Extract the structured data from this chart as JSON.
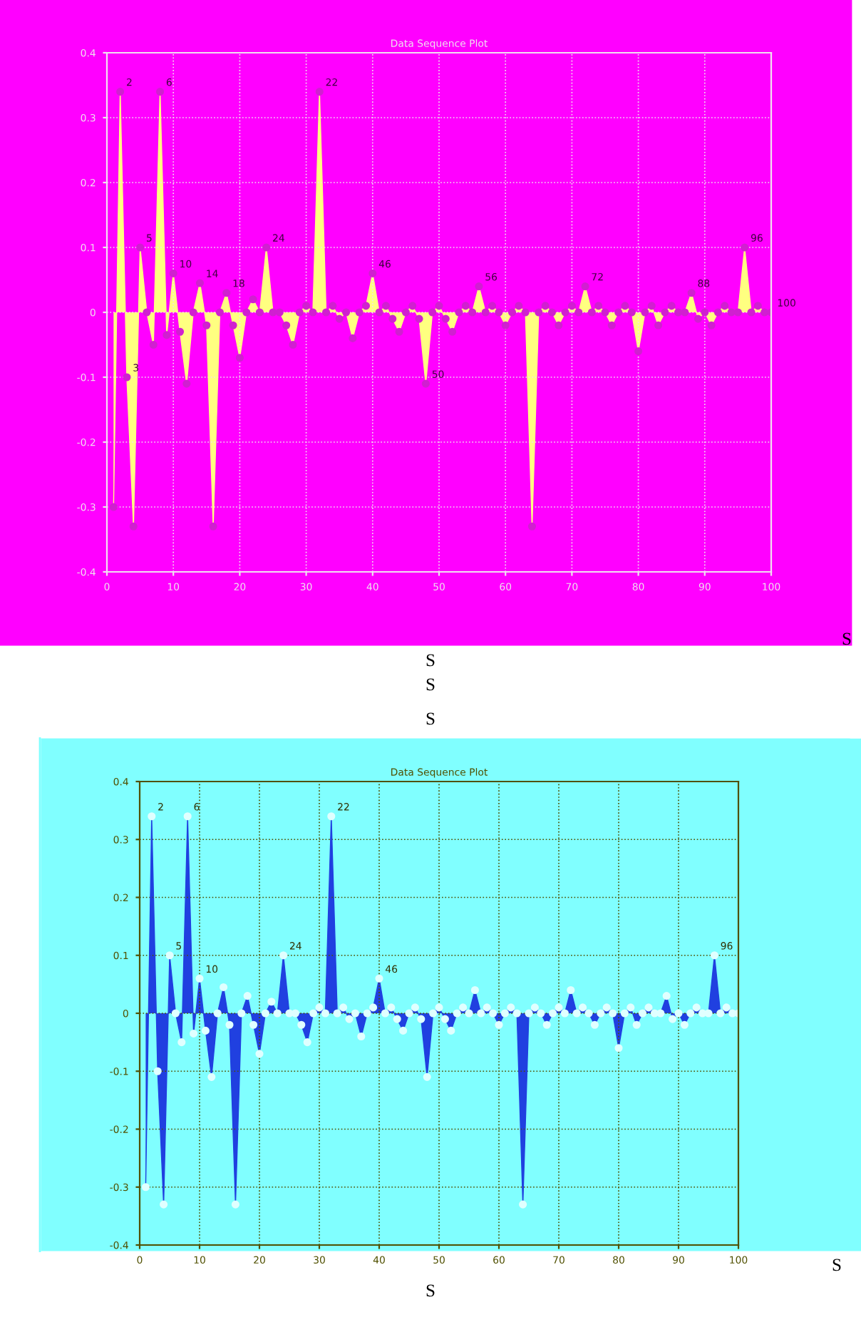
{
  "chart_data": [
    {
      "type": "area",
      "title": "Data Sequence Plot",
      "x": [
        1,
        2,
        3,
        4,
        5,
        6,
        7,
        8,
        9,
        10,
        11,
        12,
        13,
        14,
        15,
        16,
        17,
        18,
        19,
        20,
        21,
        22,
        23,
        24,
        25,
        26,
        27,
        28,
        29,
        30,
        31,
        32,
        33,
        34,
        35,
        36,
        37,
        38,
        39,
        40,
        41,
        42,
        43,
        44,
        45,
        46,
        47,
        48,
        49,
        50,
        51,
        52,
        53,
        54,
        55,
        56,
        57,
        58,
        59,
        60,
        61,
        62,
        63,
        64,
        65,
        66,
        67,
        68,
        69,
        70,
        71,
        72,
        73,
        74,
        75,
        76,
        77,
        78,
        79,
        80,
        81,
        82,
        83,
        84,
        85,
        86,
        87,
        88,
        89,
        90,
        91,
        92,
        93,
        94,
        95,
        96,
        97,
        98,
        99,
        100
      ],
      "series": [
        {
          "color": "#ffff80",
          "values": [
            -0.3,
            0.34,
            -0.1,
            -0.33,
            0.1,
            0.0,
            -0.05,
            0.34,
            -0.035,
            0.06,
            -0.03,
            -0.11,
            0.0,
            0.045,
            -0.02,
            -0.33,
            0.0,
            0.03,
            -0.02,
            -0.07,
            0.0,
            0.02,
            0.0,
            0.1,
            0.0,
            0.0,
            -0.02,
            -0.05,
            0.0,
            0.01,
            0.0,
            0.34,
            0.0,
            0.01,
            -0.01,
            0.0,
            -0.04,
            0.0,
            0.01,
            0.06,
            0.0,
            0.01,
            -0.01,
            -0.03,
            0.0,
            0.01,
            -0.01,
            -0.11,
            0.0,
            0.01,
            -0.01,
            -0.03,
            0.0,
            0.01,
            0.0,
            0.04,
            0.0,
            0.01,
            0.0,
            -0.02,
            0.0,
            0.01,
            0.0,
            -0.33,
            0.0,
            0.01,
            0.0,
            -0.02,
            0.0,
            0.01,
            0.0,
            0.04,
            0.0,
            0.01,
            0.0,
            -0.02,
            0.0,
            0.01,
            0.0,
            -0.06,
            0.0,
            0.01,
            -0.02,
            0.0,
            0.01,
            0.0,
            0.0,
            0.03,
            -0.01,
            0.0,
            -0.02,
            0.0,
            0.01,
            0.0,
            0.0,
            0.1,
            0.0,
            0.01,
            0.0,
            0.0
          ]
        }
      ],
      "xlim": [
        0,
        100
      ],
      "xticks": [
        0,
        10,
        20,
        30,
        40,
        50,
        60,
        70,
        80,
        90,
        100
      ],
      "ylim": [
        -0.4,
        0.4
      ],
      "yticks": [
        -0.4,
        -0.3,
        -0.2,
        -0.1,
        0,
        0.1,
        0.2,
        0.3,
        0.4
      ],
      "grid": true,
      "marker": "circle",
      "annotations": [
        {
          "text": "2",
          "x": 2,
          "y": 0.34
        },
        {
          "text": "6",
          "x": 8,
          "y": 0.34
        },
        {
          "text": "22",
          "x": 32,
          "y": 0.34
        },
        {
          "text": "5",
          "x": 5,
          "y": 0.1
        },
        {
          "text": "10",
          "x": 10,
          "y": 0.06
        },
        {
          "text": "14",
          "x": 14,
          "y": 0.045
        },
        {
          "text": "18",
          "x": 18,
          "y": 0.03
        },
        {
          "text": "24",
          "x": 24,
          "y": 0.1
        },
        {
          "text": "46",
          "x": 40,
          "y": 0.06
        },
        {
          "text": "56",
          "x": 56,
          "y": 0.04
        },
        {
          "text": "72",
          "x": 72,
          "y": 0.04
        },
        {
          "text": "88",
          "x": 88,
          "y": 0.03
        },
        {
          "text": "96",
          "x": 96,
          "y": 0.1
        },
        {
          "text": "3",
          "x": 3,
          "y": -0.1
        },
        {
          "text": "50",
          "x": 48,
          "y": -0.11
        },
        {
          "text": "100",
          "x": 100,
          "y": 0.0
        },
        "S",
        "S",
        "S",
        "S"
      ]
    },
    {
      "type": "area",
      "title": "Data Sequence Plot",
      "x": [
        1,
        2,
        3,
        4,
        5,
        6,
        7,
        8,
        9,
        10,
        11,
        12,
        13,
        14,
        15,
        16,
        17,
        18,
        19,
        20,
        21,
        22,
        23,
        24,
        25,
        26,
        27,
        28,
        29,
        30,
        31,
        32,
        33,
        34,
        35,
        36,
        37,
        38,
        39,
        40,
        41,
        42,
        43,
        44,
        45,
        46,
        47,
        48,
        49,
        50,
        51,
        52,
        53,
        54,
        55,
        56,
        57,
        58,
        59,
        60,
        61,
        62,
        63,
        64,
        65,
        66,
        67,
        68,
        69,
        70,
        71,
        72,
        73,
        74,
        75,
        76,
        77,
        78,
        79,
        80,
        81,
        82,
        83,
        84,
        85,
        86,
        87,
        88,
        89,
        90,
        91,
        92,
        93,
        94,
        95,
        96,
        97,
        98,
        99,
        100
      ],
      "series": [
        {
          "color": "#2040e0",
          "values": [
            -0.3,
            0.34,
            -0.1,
            -0.33,
            0.1,
            0.0,
            -0.05,
            0.34,
            -0.035,
            0.06,
            -0.03,
            -0.11,
            0.0,
            0.045,
            -0.02,
            -0.33,
            0.0,
            0.03,
            -0.02,
            -0.07,
            0.0,
            0.02,
            0.0,
            0.1,
            0.0,
            0.0,
            -0.02,
            -0.05,
            0.0,
            0.01,
            0.0,
            0.34,
            0.0,
            0.01,
            -0.01,
            0.0,
            -0.04,
            0.0,
            0.01,
            0.06,
            0.0,
            0.01,
            -0.01,
            -0.03,
            0.0,
            0.01,
            -0.01,
            -0.11,
            0.0,
            0.01,
            -0.01,
            -0.03,
            0.0,
            0.01,
            0.0,
            0.04,
            0.0,
            0.01,
            0.0,
            -0.02,
            0.0,
            0.01,
            0.0,
            -0.33,
            0.0,
            0.01,
            0.0,
            -0.02,
            0.0,
            0.01,
            0.0,
            0.04,
            0.0,
            0.01,
            0.0,
            -0.02,
            0.0,
            0.01,
            0.0,
            -0.06,
            0.0,
            0.01,
            -0.02,
            0.0,
            0.01,
            0.0,
            0.0,
            0.03,
            -0.01,
            0.0,
            -0.02,
            0.0,
            0.01,
            0.0,
            0.0,
            0.1,
            0.0,
            0.01,
            0.0,
            0.0
          ]
        }
      ],
      "xlim": [
        0,
        100
      ],
      "xticks": [
        0,
        10,
        20,
        30,
        40,
        50,
        60,
        70,
        80,
        90,
        100
      ],
      "ylim": [
        -0.4,
        0.4
      ],
      "yticks": [
        -0.4,
        -0.3,
        -0.2,
        -0.1,
        0,
        0.1,
        0.2,
        0.3,
        0.4
      ],
      "grid": true,
      "marker": "circle",
      "annotations": [
        {
          "text": "2",
          "x": 2,
          "y": 0.34
        },
        {
          "text": "6",
          "x": 8,
          "y": 0.34
        },
        {
          "text": "22",
          "x": 32,
          "y": 0.34
        },
        {
          "text": "5",
          "x": 5,
          "y": 0.1
        },
        {
          "text": "10",
          "x": 10,
          "y": 0.06
        },
        {
          "text": "24",
          "x": 24,
          "y": 0.1
        },
        {
          "text": "46",
          "x": 40,
          "y": 0.06
        },
        {
          "text": "96",
          "x": 96,
          "y": 0.1
        },
        "S",
        "S"
      ]
    }
  ]
}
